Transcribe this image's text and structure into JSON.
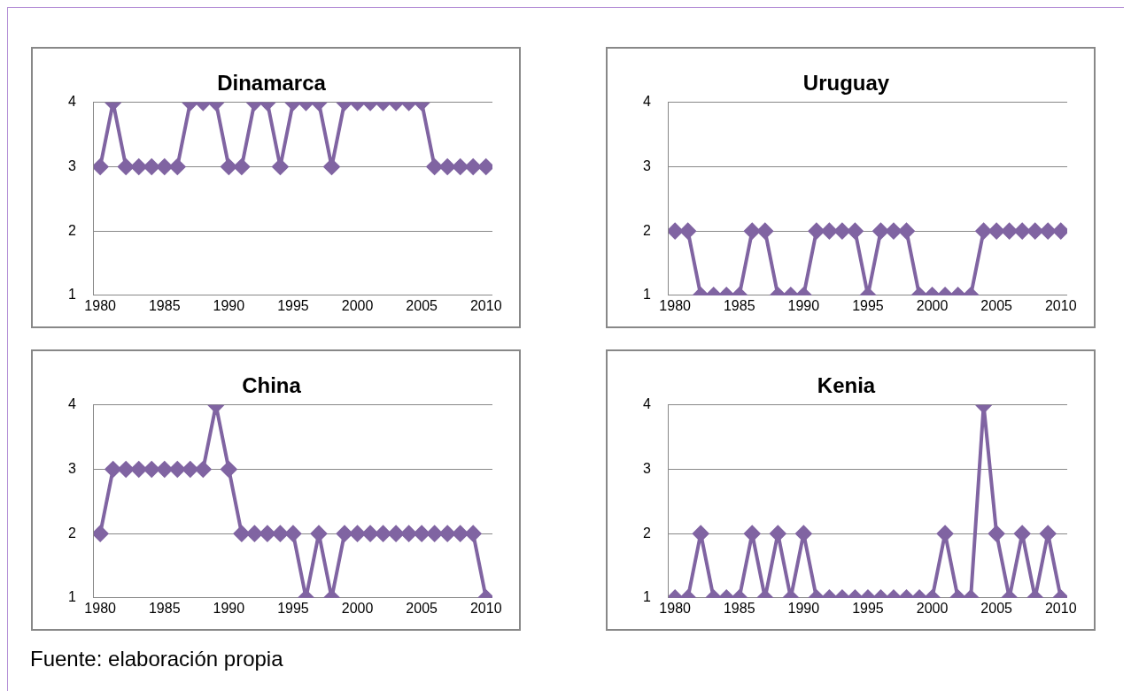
{
  "chart_data": [
    {
      "type": "line",
      "title": "Dinamarca",
      "x": [
        1980,
        1981,
        1982,
        1983,
        1984,
        1985,
        1986,
        1987,
        1988,
        1989,
        1990,
        1991,
        1992,
        1993,
        1994,
        1995,
        1996,
        1997,
        1998,
        1999,
        2000,
        2001,
        2002,
        2003,
        2004,
        2005,
        2006,
        2007,
        2008,
        2009,
        2010
      ],
      "series": [
        {
          "color": "#8064a2",
          "values": [
            3,
            4,
            3,
            3,
            3,
            3,
            3,
            4,
            4,
            4,
            3,
            3,
            4,
            4,
            3,
            4,
            4,
            4,
            3,
            4,
            4,
            4,
            4,
            4,
            4,
            4,
            3,
            3,
            3,
            3,
            3
          ]
        }
      ],
      "xlim": [
        1979.5,
        2010.5
      ],
      "xticks": [
        1980,
        1985,
        1990,
        1995,
        2000,
        2005,
        2010
      ],
      "ylim": [
        1,
        4
      ],
      "yticks": [
        1,
        2,
        3,
        4
      ],
      "grid": "y",
      "marker": "diamond",
      "legend": false
    },
    {
      "type": "line",
      "title": "Uruguay",
      "x": [
        1980,
        1981,
        1982,
        1983,
        1984,
        1985,
        1986,
        1987,
        1988,
        1989,
        1990,
        1991,
        1992,
        1993,
        1994,
        1995,
        1996,
        1997,
        1998,
        1999,
        2000,
        2001,
        2002,
        2003,
        2004,
        2005,
        2006,
        2007,
        2008,
        2009,
        2010
      ],
      "series": [
        {
          "color": "#8064a2",
          "values": [
            2,
            2,
            1,
            1,
            1,
            1,
            2,
            2,
            1,
            1,
            1,
            2,
            2,
            2,
            2,
            1,
            2,
            2,
            2,
            1,
            1,
            1,
            1,
            1,
            2,
            2,
            2,
            2,
            2,
            2,
            2
          ]
        }
      ],
      "xlim": [
        1979.5,
        2010.5
      ],
      "xticks": [
        1980,
        1985,
        1990,
        1995,
        2000,
        2005,
        2010
      ],
      "ylim": [
        1,
        4
      ],
      "yticks": [
        1,
        2,
        3,
        4
      ],
      "grid": "y",
      "marker": "diamond",
      "legend": false
    },
    {
      "type": "line",
      "title": "China",
      "x": [
        1980,
        1981,
        1982,
        1983,
        1984,
        1985,
        1986,
        1987,
        1988,
        1989,
        1990,
        1991,
        1992,
        1993,
        1994,
        1995,
        1996,
        1997,
        1998,
        1999,
        2000,
        2001,
        2002,
        2003,
        2004,
        2005,
        2006,
        2007,
        2008,
        2009,
        2010
      ],
      "series": [
        {
          "color": "#8064a2",
          "values": [
            2,
            3,
            3,
            3,
            3,
            3,
            3,
            3,
            3,
            4,
            3,
            2,
            2,
            2,
            2,
            2,
            1,
            2,
            1,
            2,
            2,
            2,
            2,
            2,
            2,
            2,
            2,
            2,
            2,
            2,
            1
          ]
        }
      ],
      "xlim": [
        1979.5,
        2010.5
      ],
      "xticks": [
        1980,
        1985,
        1990,
        1995,
        2000,
        2005,
        2010
      ],
      "ylim": [
        1,
        4
      ],
      "yticks": [
        1,
        2,
        3,
        4
      ],
      "grid": "y",
      "marker": "diamond",
      "legend": false,
      "annotations": [
        "Fuente: elaboración propia"
      ]
    },
    {
      "type": "line",
      "title": "Kenia",
      "x": [
        1980,
        1981,
        1982,
        1983,
        1984,
        1985,
        1986,
        1987,
        1988,
        1989,
        1990,
        1991,
        1992,
        1993,
        1994,
        1995,
        1996,
        1997,
        1998,
        1999,
        2000,
        2001,
        2002,
        2003,
        2004,
        2005,
        2006,
        2007,
        2008,
        2009,
        2010
      ],
      "series": [
        {
          "color": "#8064a2",
          "values": [
            1,
            1,
            2,
            1,
            1,
            1,
            2,
            1,
            2,
            1,
            2,
            1,
            1,
            1,
            1,
            1,
            1,
            1,
            1,
            1,
            1,
            2,
            1,
            1,
            4,
            2,
            1,
            2,
            1,
            2,
            1
          ]
        }
      ],
      "xlim": [
        1979.5,
        2010.5
      ],
      "xticks": [
        1980,
        1985,
        1990,
        1995,
        2000,
        2005,
        2010
      ],
      "ylim": [
        1,
        4
      ],
      "yticks": [
        1,
        2,
        3,
        4
      ],
      "grid": "y",
      "marker": "diamond",
      "legend": false
    }
  ]
}
